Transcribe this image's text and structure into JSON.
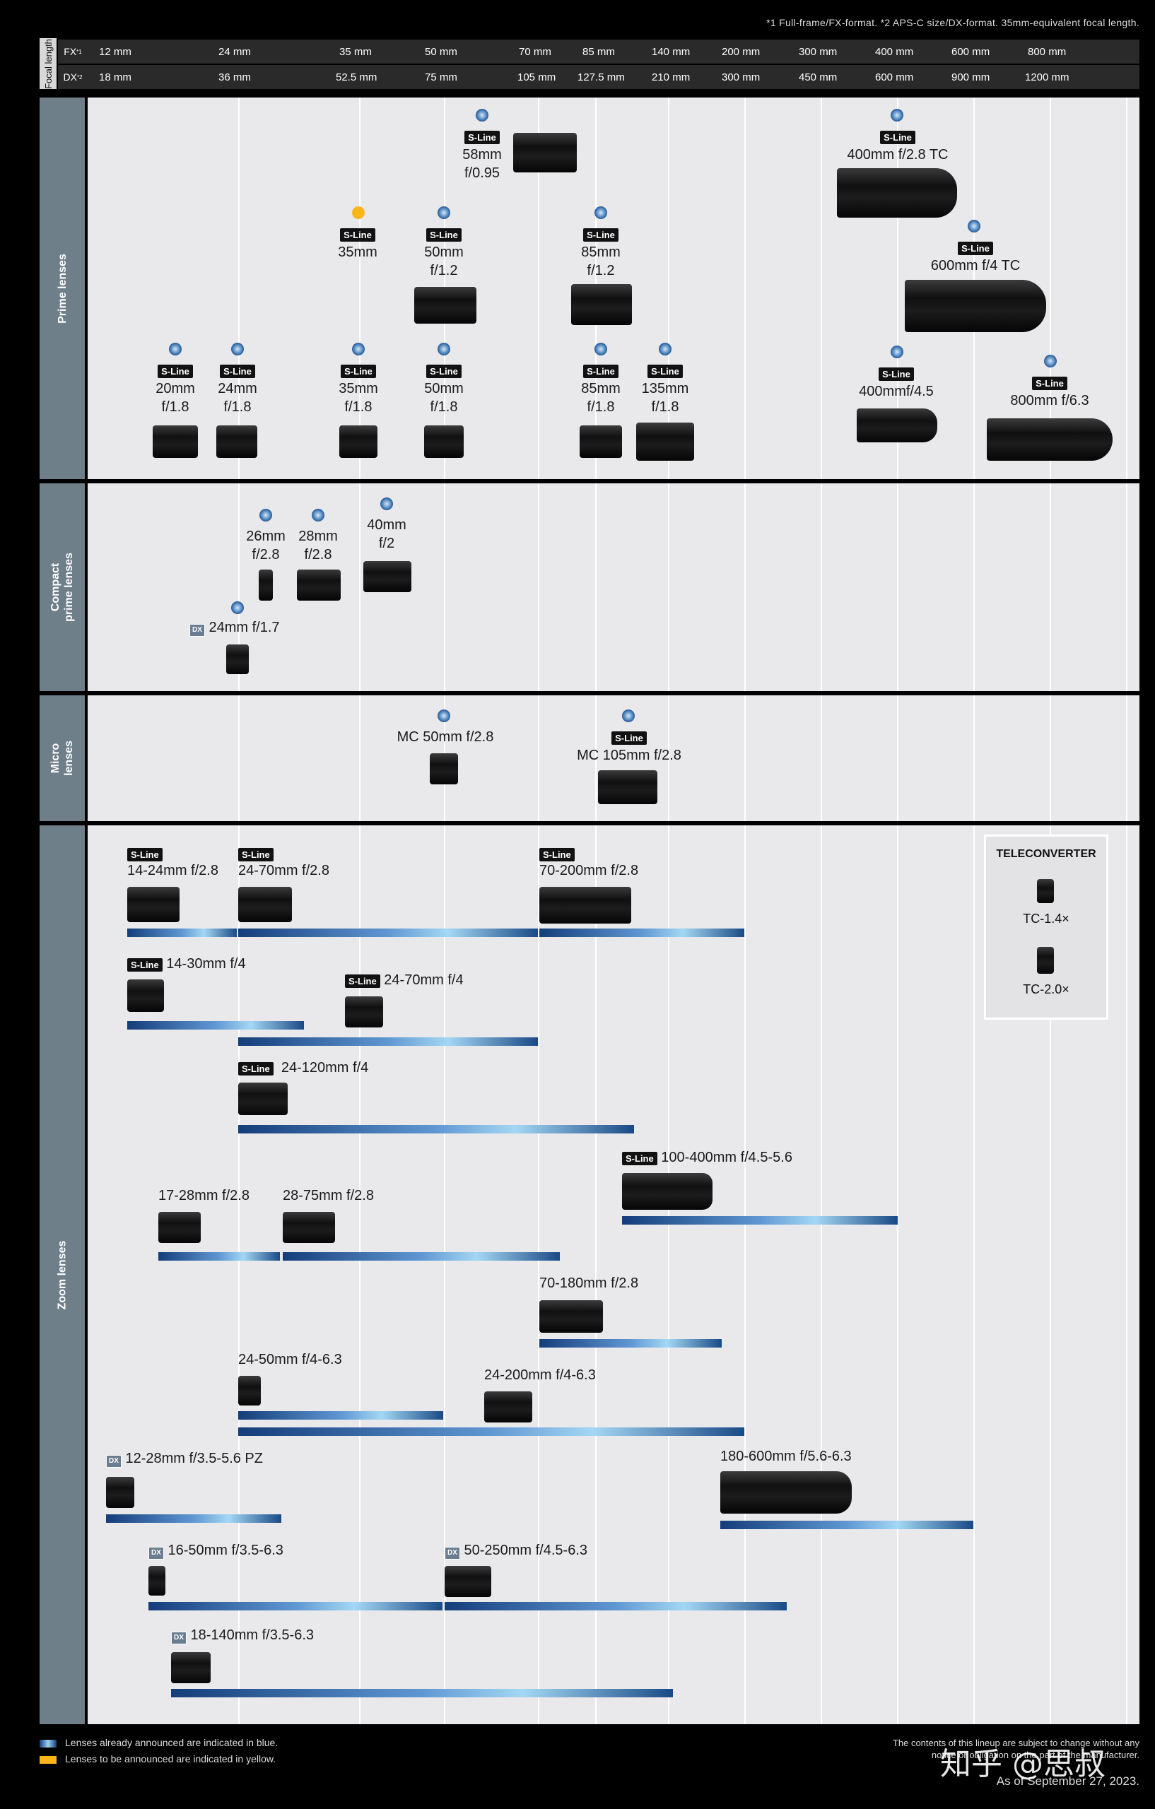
{
  "top_note": "*1 Full-frame/FX-format. *2 APS-C size/DX-format. 35mm-equivalent focal length.",
  "focal_length_label": "Focal length",
  "fx_label": "FX",
  "fx_sup": "*1",
  "dx_label": "DX",
  "dx_sup": "*2",
  "fx_values": [
    "12 mm",
    "24 mm",
    "35 mm",
    "50 mm",
    "70 mm",
    "85 mm",
    "140 mm",
    "200 mm",
    "300 mm",
    "400 mm",
    "600 mm",
    "800 mm"
  ],
  "dx_values": [
    "18 mm",
    "36 mm",
    "52.5 mm",
    "75 mm",
    "105 mm",
    "127.5 mm",
    "210 mm",
    "300 mm",
    "450 mm",
    "600 mm",
    "900 mm",
    "1200 mm"
  ],
  "sections": {
    "prime": "Prime lenses",
    "compact_1": "Compact",
    "compact_2": "prime lenses",
    "micro_1": "Micro",
    "micro_2": "lenses",
    "zoom": "Zoom lenses"
  },
  "sline": "S-Line",
  "dx": "DX",
  "prime": [
    {
      "l1": "58mm",
      "l2": "f/0.95"
    },
    {
      "l1": "400mm f/2.8 TC",
      "l2": ""
    },
    {
      "l1": "600mm f/4 TC",
      "l2": ""
    },
    {
      "l1": "35mm",
      "l2": ""
    },
    {
      "l1": "50mm",
      "l2": "f/1.2"
    },
    {
      "l1": "85mm",
      "l2": "f/1.2"
    },
    {
      "l1": "20mm",
      "l2": "f/1.8"
    },
    {
      "l1": "24mm",
      "l2": "f/1.8"
    },
    {
      "l1": "35mm",
      "l2": "f/1.8"
    },
    {
      "l1": "50mm",
      "l2": "f/1.8"
    },
    {
      "l1": "85mm",
      "l2": "f/1.8"
    },
    {
      "l1": "135mm",
      "l2": "f/1.8"
    },
    {
      "l1": "400mmf/4.5",
      "l2": ""
    },
    {
      "l1": "800mm f/6.3",
      "l2": ""
    }
  ],
  "compact": [
    {
      "l1": "26mm",
      "l2": "f/2.8"
    },
    {
      "l1": "28mm",
      "l2": "f/2.8"
    },
    {
      "l1": "40mm",
      "l2": "f/2"
    },
    {
      "l1": "24mm f/1.7",
      "l2": ""
    }
  ],
  "micro": [
    {
      "l1": "MC 50mm f/2.8"
    },
    {
      "l1": "MC 105mm f/2.8"
    }
  ],
  "zoom": [
    "14-24mm f/2.8",
    "24-70mm f/2.8",
    "70-200mm f/2.8",
    "14-30mm f/4",
    "24-70mm f/4",
    "24-120mm f/4",
    "100-400mm f/4.5-5.6",
    "17-28mm f/2.8",
    "28-75mm f/2.8",
    "70-180mm f/2.8",
    "24-50mm f/4-6.3",
    "24-200mm f/4-6.3",
    "12-28mm f/3.5-5.6 PZ",
    "180-600mm f/5.6-6.3",
    "16-50mm f/3.5-6.3",
    "50-250mm f/4.5-6.3",
    "18-140mm f/3.5-6.3"
  ],
  "teleconverter": {
    "title": "TELECONVERTER",
    "a": "TC-1.4×",
    "b": "TC-2.0×"
  },
  "legend": {
    "blue": "Lenses already announced are indicated in blue.",
    "yellow": "Lenses to be announced are indicated in yellow.",
    "blue_color": "#4a86c4",
    "yellow_color": "#f8b61a"
  },
  "footer_right_1": "The contents of this lineup are subject to change without any",
  "footer_right_2": "notice or obligation on the part of the manufacturer.",
  "as_of": "As of September 27, 2023.",
  "watermark": "知乎 @思叔"
}
